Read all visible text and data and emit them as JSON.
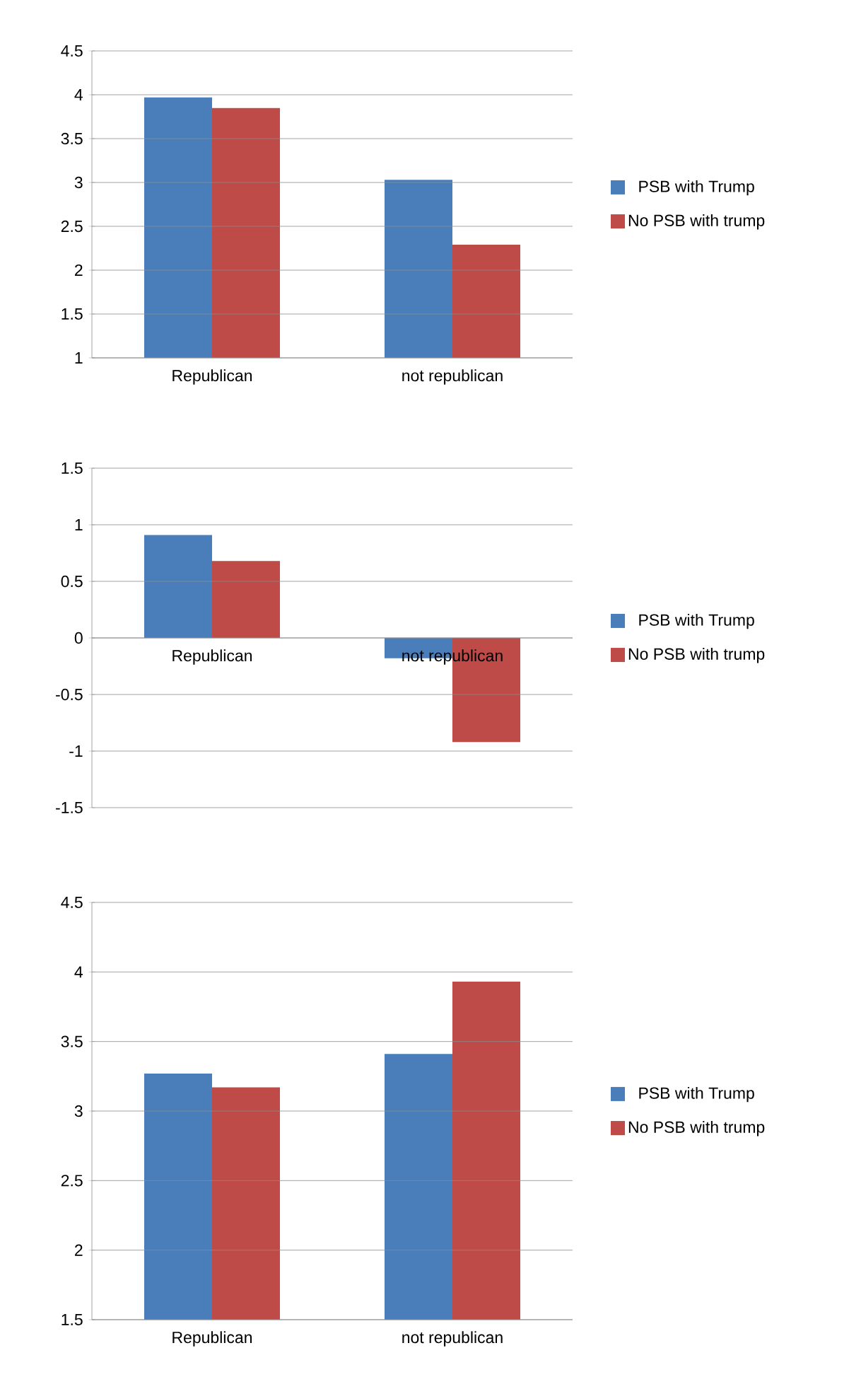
{
  "chart_data": [
    {
      "type": "bar",
      "categories": [
        "Republican",
        "not republican"
      ],
      "series": [
        {
          "name": "PSB with Trump",
          "color": "#4a7ebb",
          "values": [
            3.97,
            3.03
          ]
        },
        {
          "name": "No PSB with trump",
          "color": "#be4b48",
          "values": [
            3.85,
            2.29
          ]
        }
      ],
      "ylim": [
        1,
        4.5
      ],
      "yticks": [
        1,
        1.5,
        2,
        2.5,
        3,
        3.5,
        4,
        4.5
      ],
      "grid": "y",
      "legend": "right"
    },
    {
      "type": "bar",
      "categories": [
        "Republican",
        "not republican"
      ],
      "series": [
        {
          "name": "PSB with Trump",
          "color": "#4a7ebb",
          "values": [
            0.91,
            -0.18
          ]
        },
        {
          "name": "No PSB with trump",
          "color": "#be4b48",
          "values": [
            0.68,
            -0.92
          ]
        }
      ],
      "ylim": [
        -1.5,
        1.5
      ],
      "yticks": [
        -1.5,
        -1,
        -0.5,
        0,
        0.5,
        1,
        1.5
      ],
      "grid": "y",
      "legend": "right"
    },
    {
      "type": "bar",
      "categories": [
        "Republican",
        "not republican"
      ],
      "series": [
        {
          "name": "PSB with Trump",
          "color": "#4a7ebb",
          "values": [
            3.27,
            3.41
          ]
        },
        {
          "name": "No PSB with trump",
          "color": "#be4b48",
          "values": [
            3.17,
            3.93
          ]
        }
      ],
      "ylim": [
        1.5,
        4.5
      ],
      "yticks": [
        1.5,
        2,
        2.5,
        3,
        3.5,
        4,
        4.5
      ],
      "grid": "y",
      "legend": "right"
    }
  ]
}
